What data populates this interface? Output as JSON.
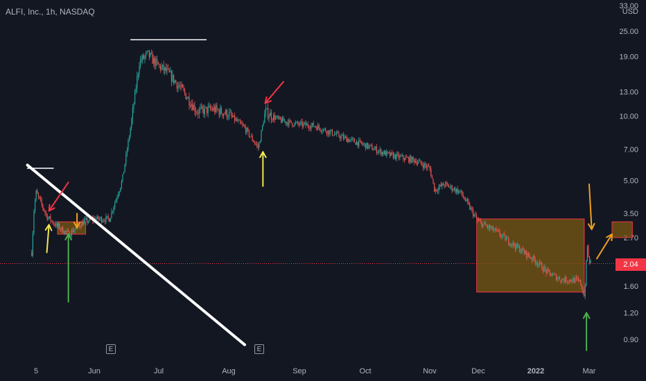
{
  "symbol_label": "ALFI, Inc., 1h, NASDAQ",
  "currency": "USD",
  "last_price": "2.04",
  "earnings_marker": "E",
  "colors": {
    "background": "#131722",
    "up": "#26a69a",
    "down": "#ef5350",
    "price_line": "#f23645",
    "highlight_fill": "#7a5a12",
    "highlight_border": "#f23645"
  },
  "chart_data": {
    "type": "candlestick",
    "title": "ALFI, Inc., 1h, NASDAQ",
    "y_scale": "log",
    "ylim": [
      0.75,
      33
    ],
    "y_ticks": [
      "33.00",
      "25.00",
      "19.00",
      "13.00",
      "10.00",
      "7.00",
      "5.00",
      "3.50",
      "2.70",
      "2.04",
      "1.60",
      "1.20",
      "0.90"
    ],
    "x_ticks": [
      "5",
      "Jun",
      "Jul",
      "Aug",
      "Sep",
      "Oct",
      "Nov",
      "Dec",
      "2022",
      "Mar"
    ],
    "price_path": [
      {
        "date": "May 3",
        "price": 2.3
      },
      {
        "date": "May 4",
        "price": 3.6
      },
      {
        "date": "May 5",
        "price": 4.4
      },
      {
        "date": "May 10",
        "price": 3.4
      },
      {
        "date": "May 14",
        "price": 3.1
      },
      {
        "date": "May 20",
        "price": 2.8
      },
      {
        "date": "May 27",
        "price": 3.2
      },
      {
        "date": "Jun 1",
        "price": 3.3
      },
      {
        "date": "Jun 8",
        "price": 3.3
      },
      {
        "date": "Jun 14",
        "price": 5.0
      },
      {
        "date": "Jun 18",
        "price": 9.0
      },
      {
        "date": "Jun 22",
        "price": 18.0
      },
      {
        "date": "Jun 26",
        "price": 19.5
      },
      {
        "date": "Jun 30",
        "price": 17.5
      },
      {
        "date": "Jul 5",
        "price": 16.0
      },
      {
        "date": "Jul 12",
        "price": 13.0
      },
      {
        "date": "Jul 18",
        "price": 10.5
      },
      {
        "date": "Jul 25",
        "price": 10.8
      },
      {
        "date": "Aug 1",
        "price": 10.2
      },
      {
        "date": "Aug 8",
        "price": 8.8
      },
      {
        "date": "Aug 14",
        "price": 7.1
      },
      {
        "date": "Aug 17",
        "price": 10.5
      },
      {
        "date": "Aug 23",
        "price": 9.6
      },
      {
        "date": "Aug 30",
        "price": 9.2
      },
      {
        "date": "Sep 8",
        "price": 9.0
      },
      {
        "date": "Sep 20",
        "price": 8.0
      },
      {
        "date": "Oct 1",
        "price": 7.3
      },
      {
        "date": "Oct 12",
        "price": 6.6
      },
      {
        "date": "Oct 25",
        "price": 6.2
      },
      {
        "date": "Nov 1",
        "price": 5.7
      },
      {
        "date": "Nov 4",
        "price": 4.5
      },
      {
        "date": "Nov 10",
        "price": 4.8
      },
      {
        "date": "Nov 20",
        "price": 4.4
      },
      {
        "date": "Dec 1",
        "price": 3.2
      },
      {
        "date": "Dec 10",
        "price": 2.9
      },
      {
        "date": "Dec 20",
        "price": 2.5
      },
      {
        "date": "Jan 1",
        "price": 2.1
      },
      {
        "date": "Jan 10",
        "price": 1.85
      },
      {
        "date": "Jan 20",
        "price": 1.72
      },
      {
        "date": "Feb 1",
        "price": 1.7
      },
      {
        "date": "Feb 10",
        "price": 1.65
      },
      {
        "date": "Feb 18",
        "price": 1.42
      },
      {
        "date": "Feb 22",
        "price": 1.9
      },
      {
        "date": "Feb 24",
        "price": 2.6
      },
      {
        "date": "Feb 28",
        "price": 2.1
      },
      {
        "date": "Mar 2",
        "price": 2.04
      }
    ],
    "annotations": [
      {
        "type": "trendline",
        "from": {
          "date": "May 1",
          "price": 5.9
        },
        "to": {
          "date": "Aug 8",
          "price": 0.85
        },
        "color": "#ffffff"
      },
      {
        "type": "hline",
        "from": {
          "date": "May 1",
          "price": 5.7
        },
        "to": {
          "date": "May 13",
          "price": 5.7
        },
        "color": "#ffffff"
      },
      {
        "type": "hline",
        "from": {
          "date": "Jun 18",
          "price": 22.8
        },
        "to": {
          "date": "Jul 22",
          "price": 22.8
        },
        "color": "#ffffff"
      },
      {
        "type": "box",
        "from": {
          "date": "May 15",
          "price": 3.2
        },
        "to": {
          "date": "May 28",
          "price": 2.8
        }
      },
      {
        "type": "box",
        "from": {
          "date": "Nov 30",
          "price": 3.3
        },
        "to": {
          "date": "Feb 18",
          "price": 1.5
        }
      },
      {
        "type": "box",
        "from": {
          "date": "Mar 10",
          "price": 3.2
        },
        "to": {
          "date": "Mar 18",
          "price": 2.7
        }
      },
      {
        "type": "arrow",
        "color": "#f23645",
        "from": {
          "date": "May 20",
          "price": 4.9
        },
        "to": {
          "date": "May 11",
          "price": 3.6
        }
      },
      {
        "type": "arrow",
        "color": "#f23645",
        "from": {
          "date": "Aug 25",
          "price": 14.5
        },
        "to": {
          "date": "Aug 17",
          "price": 11.5
        }
      },
      {
        "type": "arrow",
        "color": "#f2e94e",
        "from": {
          "date": "May 10",
          "price": 2.3
        },
        "to": {
          "date": "May 11",
          "price": 3.1
        }
      },
      {
        "type": "arrow",
        "color": "#f2e94e",
        "from": {
          "date": "Aug 16",
          "price": 4.7
        },
        "to": {
          "date": "Aug 16",
          "price": 6.8
        }
      },
      {
        "type": "arrow",
        "color": "#4caf50",
        "from": {
          "date": "May 20",
          "price": 1.35
        },
        "to": {
          "date": "May 20",
          "price": 2.8
        }
      },
      {
        "type": "arrow",
        "color": "#4caf50",
        "from": {
          "date": "Feb 23",
          "price": 0.8
        },
        "to": {
          "date": "Feb 23",
          "price": 1.2
        }
      },
      {
        "type": "arrow",
        "color": "#f0a020",
        "from": {
          "date": "May 24",
          "price": 3.5
        },
        "to": {
          "date": "May 24",
          "price": 3.0
        }
      },
      {
        "type": "arrow",
        "color": "#f0a020",
        "from": {
          "date": "Mar 1",
          "price": 4.8
        },
        "to": {
          "date": "Mar 2",
          "price": 2.95
        }
      },
      {
        "type": "arrow",
        "color": "#f0a020",
        "from": {
          "date": "Mar 4",
          "price": 2.15
        },
        "to": {
          "date": "Mar 10",
          "price": 2.8
        }
      }
    ]
  }
}
